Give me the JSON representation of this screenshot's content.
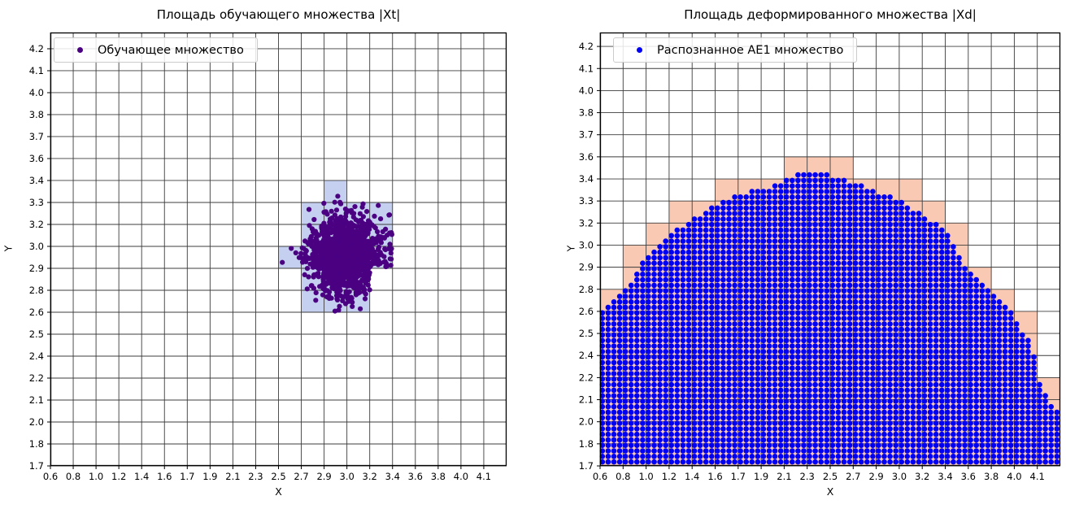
{
  "chart_data": [
    {
      "type": "scatter",
      "title": "Площадь обучающего множества |Xt|",
      "xlabel": "X",
      "ylabel": "Y",
      "grid": true,
      "legend_position": "upper left",
      "x_tick_labels": [
        "0.6",
        "0.8",
        "1.0",
        "1.2",
        "1.4",
        "1.6",
        "1.7",
        "1.9",
        "2.1",
        "2.3",
        "2.5",
        "2.7",
        "2.9",
        "3.0",
        "3.2",
        "3.4",
        "3.6",
        "3.8",
        "4.0",
        "4.1"
      ],
      "y_tick_labels": [
        "1.7",
        "1.8",
        "2.0",
        "2.1",
        "2.2",
        "2.4",
        "2.5",
        "2.6",
        "2.8",
        "2.9",
        "3.0",
        "3.2",
        "3.3",
        "3.4",
        "3.6",
        "3.7",
        "3.8",
        "4.0",
        "4.1",
        "4.2"
      ],
      "legend": [
        {
          "label": "Обучающее множество",
          "marker_color": "#4B0082"
        }
      ],
      "cell_fill_color": "#C5CFF0",
      "highlight_cells": [
        [
          12,
          12
        ],
        [
          11,
          11
        ],
        [
          12,
          11
        ],
        [
          13,
          11
        ],
        [
          14,
          11
        ],
        [
          11,
          10
        ],
        [
          12,
          10
        ],
        [
          13,
          10
        ],
        [
          14,
          10
        ],
        [
          10,
          9
        ],
        [
          11,
          9
        ],
        [
          12,
          9
        ],
        [
          13,
          9
        ],
        [
          14,
          9
        ],
        [
          11,
          8
        ],
        [
          12,
          8
        ],
        [
          13,
          8
        ],
        [
          11,
          7
        ],
        [
          12,
          7
        ],
        [
          13,
          7
        ]
      ],
      "cluster": {
        "center_x_label": "3.0",
        "center_y_label": "3.0",
        "center_cell_x": 13.0,
        "center_cell_y": 9.6,
        "sigma_cells_x": 0.82,
        "sigma_cells_y": 0.85,
        "n_points": 1400,
        "point_color": "#4B0082",
        "point_radius_px": 3.1
      }
    },
    {
      "type": "scatter",
      "title": "Площадь деформированного множества |Xd|",
      "xlabel": "X",
      "ylabel": "Y",
      "grid": true,
      "legend_position": "upper left",
      "x_tick_labels": [
        "0.6",
        "0.8",
        "1.0",
        "1.2",
        "1.4",
        "1.6",
        "1.7",
        "1.9",
        "2.1",
        "2.3",
        "2.5",
        "2.7",
        "2.9",
        "3.0",
        "3.2",
        "3.4",
        "3.6",
        "3.8",
        "4.0",
        "4.1"
      ],
      "y_tick_labels": [
        "1.7",
        "1.8",
        "2.0",
        "2.1",
        "2.2",
        "2.4",
        "2.5",
        "2.6",
        "2.8",
        "2.9",
        "3.0",
        "3.2",
        "3.3",
        "3.4",
        "3.6",
        "3.7",
        "3.8",
        "4.0",
        "4.1",
        "4.2"
      ],
      "legend": [
        {
          "label": "Распознанное AE1 множество",
          "marker_color": "#0000F2"
        }
      ],
      "cell_fill_color": "#FAC9B4",
      "region_boundary": {
        "u": [
          0,
          1,
          2,
          3,
          4,
          5,
          6,
          7,
          8.0,
          8.15,
          8.5,
          9.8,
          10.1,
          10.5,
          10.9,
          12,
          13,
          14,
          15,
          16,
          17,
          18,
          18.4,
          18.8,
          19,
          19.4,
          20
        ],
        "f": [
          7.05,
          7.95,
          9.6,
          10.6,
          11.3,
          11.9,
          12.35,
          12.7,
          12.9,
          13.2,
          13.3,
          13.3,
          13.2,
          13.1,
          13.0,
          12.55,
          12.1,
          11.5,
          10.8,
          8.95,
          7.95,
          6.9,
          6.05,
          5.55,
          3.95,
          3.3,
          2.4
        ]
      },
      "lattice": {
        "du": 0.25,
        "dv": 0.25,
        "u0": 0.1,
        "v0": 0.18,
        "point_color": "#0000F2",
        "point_radius_px": 3.3
      }
    }
  ]
}
